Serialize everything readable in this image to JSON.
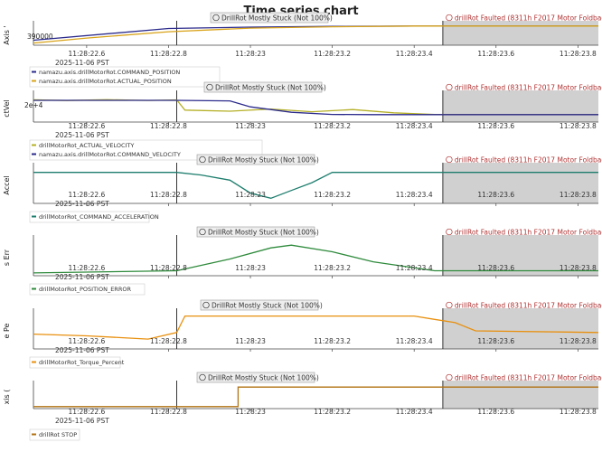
{
  "title": "Time series chart",
  "colors": {
    "olive": "#b5b027",
    "navy": "#2b2a8c",
    "teal": "#1e7e6e",
    "green": "#2f8b3c",
    "orange": "#e8900f",
    "brown": "#b07212",
    "gold": "#d9a41a",
    "fault_fill": "#c8c8c8",
    "fault_text": "#b03030",
    "event_text": "#333333"
  },
  "x_ticks": [
    "11:28:22.6",
    "11:28:22.8",
    "11:28:23",
    "11:28:23.2",
    "11:28:23.4",
    "11:28:23.6",
    "11:28:23.8"
  ],
  "x_date": "2025-11-06 PST",
  "events": {
    "stuck": "DrillRot Mostly Stuck (Not 100%)",
    "fault_short": "drillRot Faulted (8311h F2017 Motor Foldback.) (",
    "fault_long": "drillRot Faulted (8311h F2017 Motor Foldback.) (1."
  },
  "chart_data": [
    {
      "type": "line",
      "ylabel": "Axis '",
      "y_tick_label": "390000",
      "series": [
        {
          "name": "namazu.axis.drillMotorRot.COMMAND_POSITION",
          "color": "#2b2a8c",
          "x": [
            22.47,
            22.8,
            23.0,
            23.2,
            23.4,
            23.47,
            23.85
          ],
          "y": [
            388400,
            390050,
            390250,
            390350,
            390400,
            390400,
            390400
          ]
        },
        {
          "name": "namazu.axis.drillMotorRot.ACTUAL_POSITION",
          "color": "#d9a41a",
          "x": [
            22.47,
            22.6,
            22.8,
            23.0,
            23.2,
            23.4,
            23.47,
            23.85
          ],
          "y": [
            388000,
            388700,
            389600,
            390100,
            390300,
            390400,
            390400,
            390400
          ]
        }
      ],
      "ylim": [
        387700,
        390500
      ]
    },
    {
      "type": "line",
      "ylabel": "ctVel",
      "y_tick_label": "2e+4",
      "series": [
        {
          "name": "drillMotorRot_ACTUAL_VELOCITY",
          "color": "#b5b027",
          "x": [
            22.47,
            22.55,
            22.65,
            22.75,
            22.82,
            22.84,
            22.95,
            23.05,
            23.15,
            23.25,
            23.35,
            23.45,
            23.6,
            23.85
          ],
          "y": [
            20500,
            19800,
            20600,
            19900,
            20400,
            11000,
            10000,
            12000,
            9500,
            11500,
            8500,
            7000,
            6800,
            6800
          ]
        },
        {
          "name": "namazu.axis.drillMotorRot.COMMAND_VELOCITY",
          "color": "#2b2a8c",
          "x": [
            22.47,
            22.82,
            22.95,
            23.0,
            23.1,
            23.2,
            23.3,
            23.45,
            23.85
          ],
          "y": [
            20000,
            20000,
            19500,
            14000,
            9000,
            7000,
            6800,
            6800,
            6800
          ]
        }
      ],
      "ylim": [
        0,
        25000
      ]
    },
    {
      "type": "line",
      "ylabel": "Accel",
      "series": [
        {
          "name": "drillMotorRot_COMMAND_ACCELERATION",
          "color": "#1e7e6e",
          "x": [
            22.47,
            22.82,
            22.88,
            22.95,
            23.0,
            23.05,
            23.1,
            23.15,
            23.2,
            23.85
          ],
          "y": [
            0,
            0,
            -1,
            -3,
            -8,
            -10,
            -7,
            -4,
            0,
            0
          ]
        }
      ],
      "ylim": [
        -12,
        2
      ]
    },
    {
      "type": "line",
      "ylabel": "s Err",
      "series": [
        {
          "name": "drillMotorRot_POSITION_ERROR",
          "color": "#2f8b3c",
          "x": [
            22.47,
            22.82,
            22.95,
            23.05,
            23.1,
            23.2,
            23.3,
            23.45,
            23.85
          ],
          "y": [
            0,
            0.4,
            2.5,
            4.5,
            5,
            3.8,
            2,
            0.4,
            0.4
          ]
        }
      ],
      "ylim": [
        -0.5,
        6
      ]
    },
    {
      "type": "line",
      "ylabel": "e Pe",
      "series": [
        {
          "name": "drillMotorRot_Torque_Percent",
          "color": "#e8900f",
          "x": [
            22.47,
            22.6,
            22.75,
            22.82,
            22.84,
            23.4,
            23.45,
            23.5,
            23.55,
            23.85
          ],
          "y": [
            45,
            40,
            30,
            50,
            100,
            100,
            90,
            80,
            55,
            50
          ]
        }
      ],
      "ylim": [
        0,
        110
      ]
    },
    {
      "type": "line",
      "ylabel": "xis (",
      "series": [
        {
          "name": "drillRot STOP",
          "color": "#b07212",
          "x": [
            22.47,
            22.97,
            22.97,
            23.85
          ],
          "y": [
            0,
            0,
            1,
            1
          ]
        }
      ],
      "ylim": [
        -0.1,
        1.1
      ]
    }
  ]
}
